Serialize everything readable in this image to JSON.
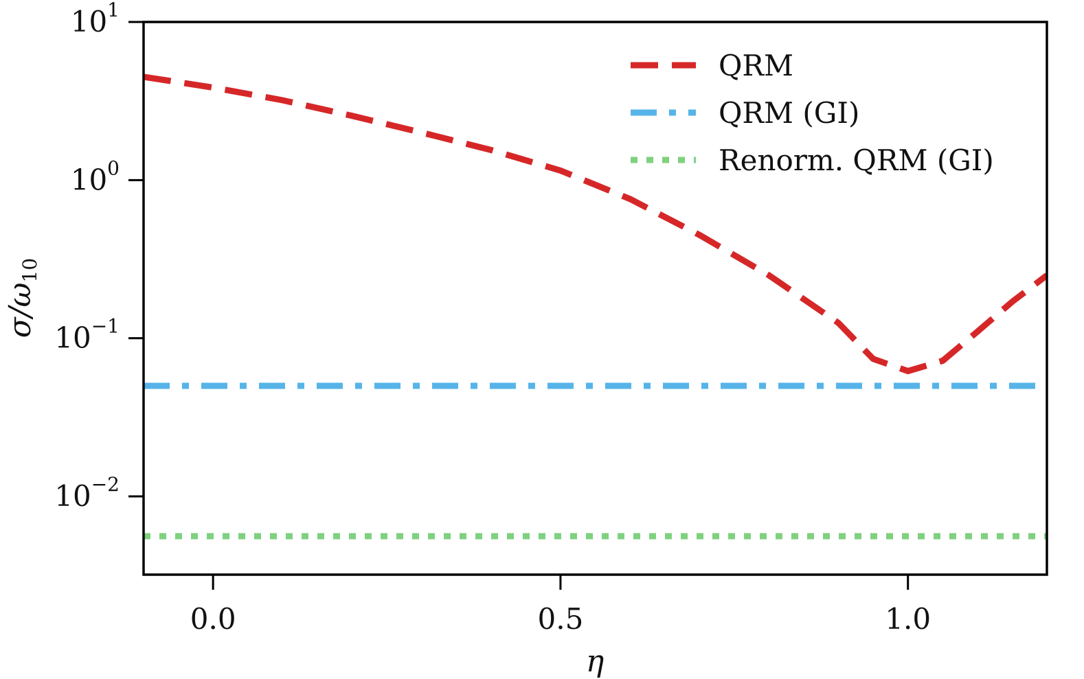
{
  "chart_data": {
    "type": "line",
    "xlabel": "η",
    "ylabel": {
      "main": "σ/ω",
      "sub": "10"
    },
    "xlim": [
      -0.1,
      1.2
    ],
    "ylim": [
      0.0032,
      10
    ],
    "yscale": "log",
    "grid": false,
    "legend_placement": "top-right",
    "x_ticks": [
      {
        "value": 0.0,
        "label": "0.0"
      },
      {
        "value": 0.5,
        "label": "0.5"
      },
      {
        "value": 1.0,
        "label": "1.0"
      }
    ],
    "y_ticks": [
      {
        "value": 10,
        "base": "10",
        "exp": "1"
      },
      {
        "value": 1,
        "base": "10",
        "exp": "0"
      },
      {
        "value": 0.1,
        "base": "10",
        "exp": "−1"
      },
      {
        "value": 0.01,
        "base": "10",
        "exp": "−2"
      }
    ],
    "series": [
      {
        "name": "QRM",
        "color": "#d62728",
        "style": "dashed",
        "x": [
          -0.1,
          0.0,
          0.1,
          0.2,
          0.3,
          0.4,
          0.5,
          0.6,
          0.7,
          0.8,
          0.9,
          0.95,
          1.0,
          1.05,
          1.1,
          1.15,
          1.2
        ],
        "y": [
          4.5,
          3.85,
          3.2,
          2.55,
          2.0,
          1.55,
          1.15,
          0.76,
          0.45,
          0.25,
          0.125,
          0.074,
          0.062,
          0.072,
          0.11,
          0.17,
          0.25
        ]
      },
      {
        "name": "QRM (GI)",
        "color": "#56b4e9",
        "style": "dashdot",
        "x": [
          -0.1,
          1.2
        ],
        "y": [
          0.05,
          0.05
        ]
      },
      {
        "name": "Renorm. QRM (GI)",
        "color": "#7fd17f",
        "style": "dotted",
        "x": [
          -0.1,
          1.2
        ],
        "y": [
          0.0056,
          0.0056
        ]
      }
    ]
  }
}
